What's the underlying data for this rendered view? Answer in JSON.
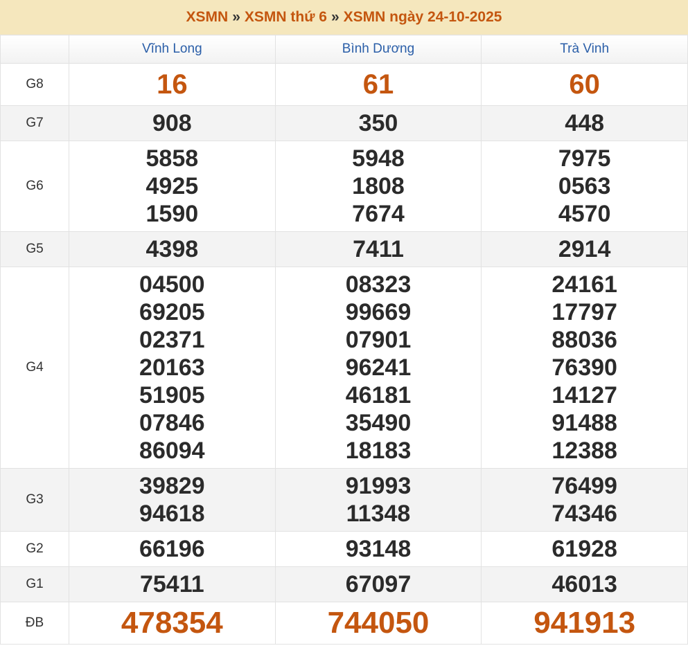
{
  "breadcrumb": [
    "XSMN",
    "XSMN thứ 6",
    "XSMN ngày 24-10-2025"
  ],
  "provinces": [
    "Vĩnh Long",
    "Bình Dương",
    "Trà Vinh"
  ],
  "prizes": [
    {
      "label": "G8",
      "values": [
        [
          "16"
        ],
        [
          "61"
        ],
        [
          "60"
        ]
      ]
    },
    {
      "label": "G7",
      "values": [
        [
          "908"
        ],
        [
          "350"
        ],
        [
          "448"
        ]
      ]
    },
    {
      "label": "G6",
      "values": [
        [
          "5858",
          "4925",
          "1590"
        ],
        [
          "5948",
          "1808",
          "7674"
        ],
        [
          "7975",
          "0563",
          "4570"
        ]
      ]
    },
    {
      "label": "G5",
      "values": [
        [
          "4398"
        ],
        [
          "7411"
        ],
        [
          "2914"
        ]
      ]
    },
    {
      "label": "G4",
      "values": [
        [
          "04500",
          "69205",
          "02371",
          "20163",
          "51905",
          "07846",
          "86094"
        ],
        [
          "08323",
          "99669",
          "07901",
          "96241",
          "46181",
          "35490",
          "18183"
        ],
        [
          "24161",
          "17797",
          "88036",
          "76390",
          "14127",
          "91488",
          "12388"
        ]
      ]
    },
    {
      "label": "G3",
      "values": [
        [
          "39829",
          "94618"
        ],
        [
          "91993",
          "11348"
        ],
        [
          "76499",
          "74346"
        ]
      ]
    },
    {
      "label": "G2",
      "values": [
        [
          "66196"
        ],
        [
          "93148"
        ],
        [
          "61928"
        ]
      ]
    },
    {
      "label": "G1",
      "values": [
        [
          "75411"
        ],
        [
          "67097"
        ],
        [
          "46013"
        ]
      ]
    },
    {
      "label": "ĐB",
      "values": [
        [
          "478354"
        ],
        [
          "744050"
        ],
        [
          "941913"
        ]
      ]
    }
  ],
  "colors": {
    "accent": "#c4560f",
    "header_text": "#2a5ea8",
    "title_bg": "#f5e7bd"
  }
}
